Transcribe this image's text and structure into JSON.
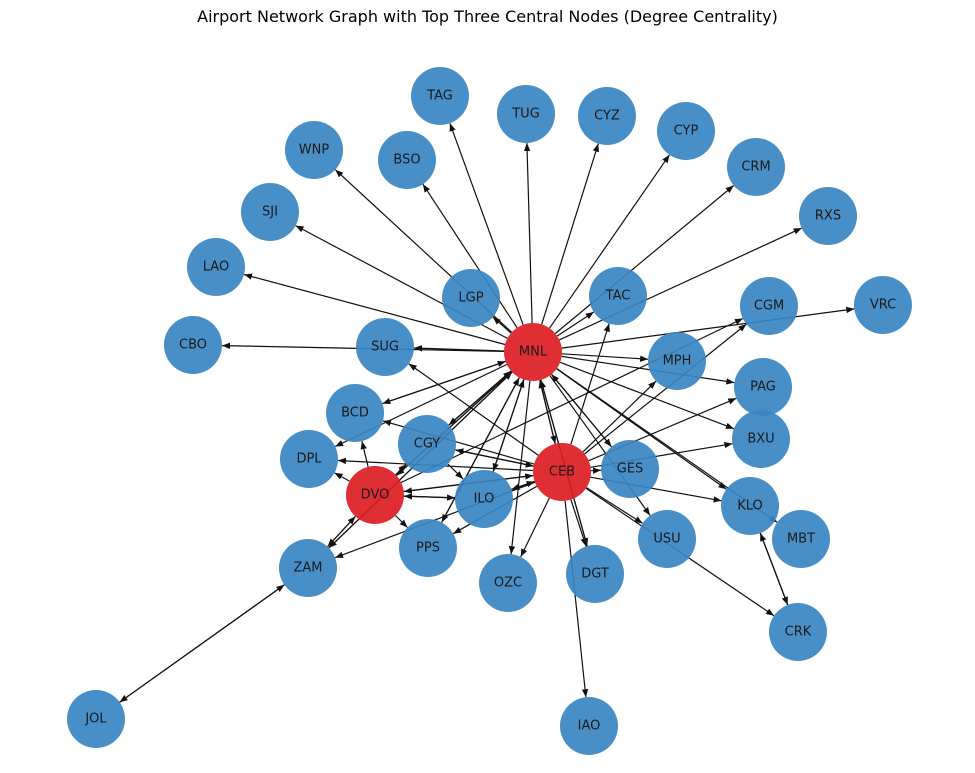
{
  "title": "Airport Network Graph with Top Three Central Nodes (Degree Centrality)",
  "colors": {
    "default_node": "#3a86c2",
    "central_node": "#dd1c24",
    "edge": "#111111",
    "label": "#1a1a1a"
  },
  "nodes": [
    {
      "id": "MNL",
      "central": true
    },
    {
      "id": "CEB",
      "central": true
    },
    {
      "id": "DVO",
      "central": true
    },
    {
      "id": "TAG",
      "central": false
    },
    {
      "id": "TUG",
      "central": false
    },
    {
      "id": "CYZ",
      "central": false
    },
    {
      "id": "CYP",
      "central": false
    },
    {
      "id": "CRM",
      "central": false
    },
    {
      "id": "RXS",
      "central": false
    },
    {
      "id": "VRC",
      "central": false
    },
    {
      "id": "WNP",
      "central": false
    },
    {
      "id": "BSO",
      "central": false
    },
    {
      "id": "SJI",
      "central": false
    },
    {
      "id": "LAO",
      "central": false
    },
    {
      "id": "CBO",
      "central": false
    },
    {
      "id": "LGP",
      "central": false
    },
    {
      "id": "TAC",
      "central": false
    },
    {
      "id": "CGM",
      "central": false
    },
    {
      "id": "SUG",
      "central": false
    },
    {
      "id": "MPH",
      "central": false
    },
    {
      "id": "PAG",
      "central": false
    },
    {
      "id": "BCD",
      "central": false
    },
    {
      "id": "BXU",
      "central": false
    },
    {
      "id": "CGY",
      "central": false
    },
    {
      "id": "DPL",
      "central": false
    },
    {
      "id": "GES",
      "central": false
    },
    {
      "id": "ILO",
      "central": false
    },
    {
      "id": "KLO",
      "central": false
    },
    {
      "id": "MBT",
      "central": false
    },
    {
      "id": "USU",
      "central": false
    },
    {
      "id": "PPS",
      "central": false
    },
    {
      "id": "ZAM",
      "central": false
    },
    {
      "id": "OZC",
      "central": false
    },
    {
      "id": "DGT",
      "central": false
    },
    {
      "id": "CRK",
      "central": false
    },
    {
      "id": "JOL",
      "central": false
    },
    {
      "id": "IAO",
      "central": false
    }
  ],
  "edges": [
    [
      "MNL",
      "TAG"
    ],
    [
      "MNL",
      "TUG"
    ],
    [
      "MNL",
      "CYZ"
    ],
    [
      "MNL",
      "CYP"
    ],
    [
      "MNL",
      "CRM"
    ],
    [
      "MNL",
      "RXS"
    ],
    [
      "MNL",
      "VRC"
    ],
    [
      "MNL",
      "WNP"
    ],
    [
      "MNL",
      "BSO"
    ],
    [
      "MNL",
      "SJI"
    ],
    [
      "MNL",
      "LAO"
    ],
    [
      "MNL",
      "CBO"
    ],
    [
      "MNL",
      "LGP"
    ],
    [
      "MNL",
      "TAC"
    ],
    [
      "MNL",
      "SUG"
    ],
    [
      "MNL",
      "MPH"
    ],
    [
      "MNL",
      "PAG"
    ],
    [
      "MNL",
      "BXU"
    ],
    [
      "MNL",
      "KLO"
    ],
    [
      "MNL",
      "MBT"
    ],
    [
      "MNL",
      "USU"
    ],
    [
      "MNL",
      "CEB"
    ],
    [
      "CEB",
      "MNL"
    ],
    [
      "MNL",
      "DVO"
    ],
    [
      "DVO",
      "MNL"
    ],
    [
      "MNL",
      "BCD"
    ],
    [
      "BCD",
      "MNL"
    ],
    [
      "MNL",
      "CGY"
    ],
    [
      "CGY",
      "MNL"
    ],
    [
      "MNL",
      "DPL"
    ],
    [
      "MNL",
      "ILO"
    ],
    [
      "ILO",
      "MNL"
    ],
    [
      "MNL",
      "PPS"
    ],
    [
      "PPS",
      "MNL"
    ],
    [
      "MNL",
      "ZAM"
    ],
    [
      "ZAM",
      "MNL"
    ],
    [
      "MNL",
      "OZC"
    ],
    [
      "MNL",
      "DGT"
    ],
    [
      "DGT",
      "MNL"
    ],
    [
      "MNL",
      "GES"
    ],
    [
      "GES",
      "MNL"
    ],
    [
      "CEB",
      "TAC"
    ],
    [
      "CEB",
      "CGM"
    ],
    [
      "CEB",
      "MPH"
    ],
    [
      "CEB",
      "PAG"
    ],
    [
      "CEB",
      "BXU"
    ],
    [
      "CEB",
      "GES"
    ],
    [
      "CEB",
      "KLO"
    ],
    [
      "CEB",
      "USU"
    ],
    [
      "CEB",
      "CRK"
    ],
    [
      "CEB",
      "DGT"
    ],
    [
      "CEB",
      "IAO"
    ],
    [
      "CEB",
      "OZC"
    ],
    [
      "CEB",
      "ILO"
    ],
    [
      "ILO",
      "CEB"
    ],
    [
      "CEB",
      "CGY"
    ],
    [
      "CGY",
      "CEB"
    ],
    [
      "CEB",
      "BCD"
    ],
    [
      "CEB",
      "DPL"
    ],
    [
      "CEB",
      "DVO"
    ],
    [
      "DVO",
      "CEB"
    ],
    [
      "CEB",
      "PPS"
    ],
    [
      "CEB",
      "ZAM"
    ],
    [
      "CEB",
      "SUG"
    ],
    [
      "DVO",
      "CGY"
    ],
    [
      "DVO",
      "ILO"
    ],
    [
      "ILO",
      "DVO"
    ],
    [
      "DVO",
      "PPS"
    ],
    [
      "DVO",
      "ZAM"
    ],
    [
      "ZAM",
      "DVO"
    ],
    [
      "DVO",
      "CGM"
    ],
    [
      "DVO",
      "DPL"
    ],
    [
      "DVO",
      "BCD"
    ],
    [
      "CGY",
      "ILO"
    ],
    [
      "KLO",
      "CRK"
    ],
    [
      "CRK",
      "KLO"
    ],
    [
      "ZAM",
      "JOL"
    ],
    [
      "JOL",
      "ZAM"
    ]
  ]
}
